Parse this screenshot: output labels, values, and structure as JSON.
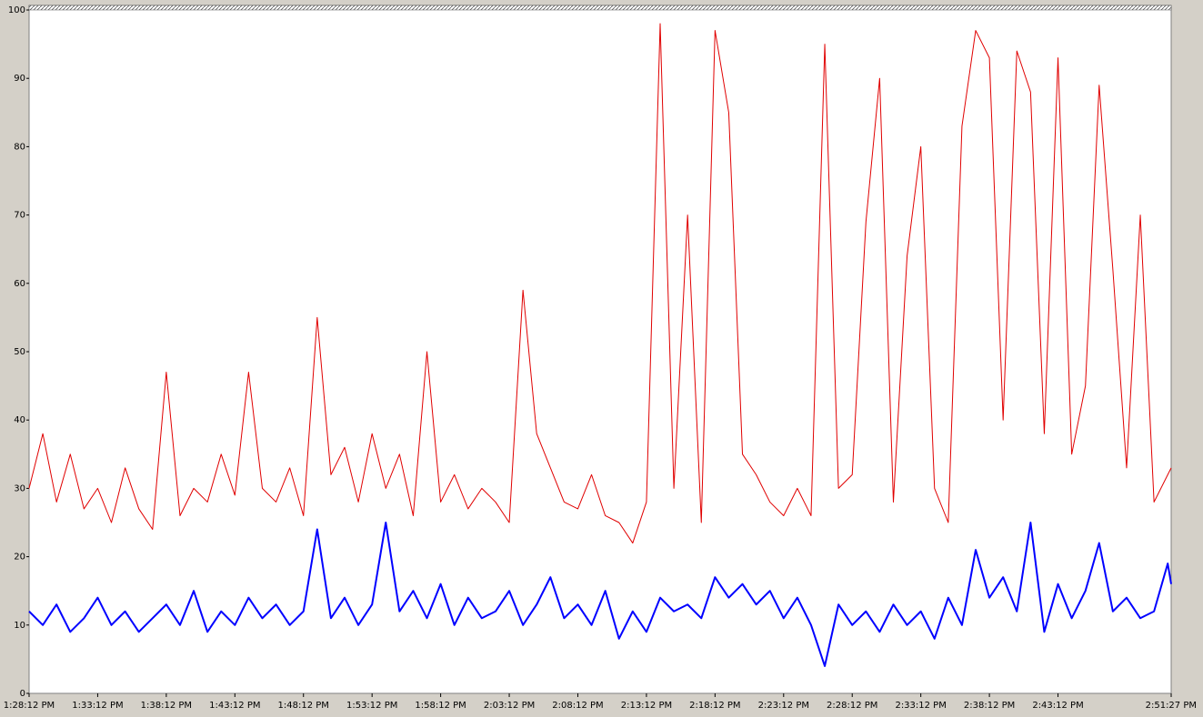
{
  "chart_data": {
    "type": "line",
    "x": [
      808.2,
      809.2,
      810.2,
      811.2,
      812.2,
      813.2,
      814.2,
      815.2,
      816.2,
      817.2,
      818.2,
      819.2,
      820.2,
      821.2,
      822.2,
      823.2,
      824.2,
      825.2,
      826.2,
      827.2,
      828.2,
      829.2,
      830.2,
      831.2,
      832.2,
      833.2,
      834.2,
      835.2,
      836.2,
      837.2,
      838.2,
      839.2,
      840.2,
      841.2,
      842.2,
      843.2,
      844.2,
      845.2,
      846.2,
      847.2,
      848.2,
      849.2,
      850.2,
      851.2,
      852.2,
      853.2,
      854.2,
      855.2,
      856.2,
      857.2,
      858.2,
      859.2,
      860.2,
      861.2,
      862.2,
      863.2,
      864.2,
      865.2,
      866.2,
      867.2,
      868.2,
      869.2,
      870.2,
      871.2,
      872.2,
      873.2,
      874.2,
      875.2,
      876.2,
      877.2,
      878.2,
      879.2,
      880.2,
      881.2,
      882.2,
      883.2,
      884.2,
      885.2,
      886.2,
      887.2,
      888.2,
      889.2,
      890.2,
      891.2,
      891.45
    ],
    "series": [
      {
        "color": "#e00000",
        "width": 1,
        "values": [
          30,
          38,
          28,
          35,
          27,
          30,
          25,
          33,
          27,
          24,
          47,
          26,
          30,
          28,
          35,
          29,
          47,
          30,
          28,
          33,
          26,
          55,
          32,
          36,
          28,
          38,
          30,
          35,
          26,
          50,
          28,
          32,
          27,
          30,
          28,
          25,
          59,
          38,
          33,
          28,
          27,
          32,
          26,
          25,
          22,
          28,
          98,
          30,
          70,
          25,
          97,
          85,
          35,
          32,
          28,
          26,
          30,
          26,
          95,
          30,
          32,
          69,
          90,
          28,
          64,
          80,
          30,
          25,
          83,
          97,
          93,
          40,
          94,
          88,
          38,
          93,
          35,
          45,
          89,
          62,
          33,
          70,
          28,
          32,
          33
        ]
      },
      {
        "color": "#0000ff",
        "width": 2,
        "values": [
          12,
          10,
          13,
          9,
          11,
          14,
          10,
          12,
          9,
          11,
          13,
          10,
          15,
          9,
          12,
          10,
          14,
          11,
          13,
          10,
          12,
          24,
          11,
          14,
          10,
          13,
          25,
          12,
          15,
          11,
          16,
          10,
          14,
          11,
          12,
          15,
          10,
          13,
          17,
          11,
          13,
          10,
          15,
          8,
          12,
          9,
          14,
          12,
          13,
          11,
          17,
          14,
          16,
          13,
          15,
          11,
          14,
          10,
          4,
          13,
          10,
          12,
          9,
          13,
          10,
          12,
          8,
          14,
          10,
          21,
          14,
          17,
          12,
          25,
          9,
          16,
          11,
          15,
          22,
          12,
          14,
          11,
          12,
          19,
          16
        ]
      }
    ],
    "xlim": [
      808.2,
      891.45
    ],
    "xticks": [
      {
        "value": 808.2,
        "label": "1:28:12 PM"
      },
      {
        "value": 813.2,
        "label": "1:33:12 PM"
      },
      {
        "value": 818.2,
        "label": "1:38:12 PM"
      },
      {
        "value": 823.2,
        "label": "1:43:12 PM"
      },
      {
        "value": 828.2,
        "label": "1:48:12 PM"
      },
      {
        "value": 833.2,
        "label": "1:53:12 PM"
      },
      {
        "value": 838.2,
        "label": "1:58:12 PM"
      },
      {
        "value": 843.2,
        "label": "2:03:12 PM"
      },
      {
        "value": 848.2,
        "label": "2:08:12 PM"
      },
      {
        "value": 853.2,
        "label": "2:13:12 PM"
      },
      {
        "value": 858.2,
        "label": "2:18:12 PM"
      },
      {
        "value": 863.2,
        "label": "2:23:12 PM"
      },
      {
        "value": 868.2,
        "label": "2:28:12 PM"
      },
      {
        "value": 873.2,
        "label": "2:33:12 PM"
      },
      {
        "value": 878.2,
        "label": "2:38:12 PM"
      },
      {
        "value": 883.2,
        "label": "2:43:12 PM"
      },
      {
        "value": 891.45,
        "label": "2:51:27 PM"
      }
    ],
    "ylim": [
      0,
      100
    ],
    "yticks": [
      0,
      10,
      20,
      30,
      40,
      50,
      60,
      70,
      80,
      90,
      100
    ],
    "grid": false
  }
}
